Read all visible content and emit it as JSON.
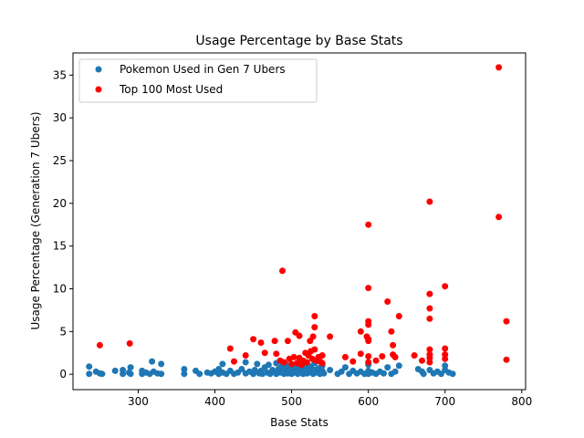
{
  "chart_data": {
    "type": "scatter",
    "title": "Usage Percentage by Base Stats",
    "xlabel": "Base Stats",
    "ylabel": "Usage Percentage (Generation 7 Ubers)",
    "xlim": [
      215,
      805
    ],
    "ylim": [
      -1.8,
      37.6
    ],
    "xticks": [
      300,
      400,
      500,
      600,
      700,
      800
    ],
    "yticks": [
      0,
      5,
      10,
      15,
      20,
      25,
      30,
      35
    ],
    "grid": false,
    "legend_position": "top-left",
    "series": [
      {
        "name": "Pokemon Used in Gen 7 Ubers",
        "color": "#1f77b4",
        "points": [
          [
            236,
            0.9
          ],
          [
            236,
            0.05
          ],
          [
            245,
            0.3
          ],
          [
            250,
            0.1
          ],
          [
            253,
            0.05
          ],
          [
            270,
            0.4
          ],
          [
            280,
            0.05
          ],
          [
            280,
            0.5
          ],
          [
            288,
            0.2
          ],
          [
            290,
            0.8
          ],
          [
            290,
            0.05
          ],
          [
            305,
            0.4
          ],
          [
            305,
            0.05
          ],
          [
            310,
            0.2
          ],
          [
            315,
            0.05
          ],
          [
            318,
            1.5
          ],
          [
            320,
            0.3
          ],
          [
            325,
            0.1
          ],
          [
            330,
            1.2
          ],
          [
            330,
            0.05
          ],
          [
            360,
            0.6
          ],
          [
            360,
            0.05
          ],
          [
            375,
            0.4
          ],
          [
            380,
            0.05
          ],
          [
            390,
            0.2
          ],
          [
            395,
            0.1
          ],
          [
            400,
            0.3
          ],
          [
            405,
            0.6
          ],
          [
            405,
            0.05
          ],
          [
            410,
            1.2
          ],
          [
            410,
            0.2
          ],
          [
            415,
            0.05
          ],
          [
            420,
            0.4
          ],
          [
            425,
            0.05
          ],
          [
            430,
            0.2
          ],
          [
            435,
            0.6
          ],
          [
            440,
            0.1
          ],
          [
            440,
            1.4
          ],
          [
            445,
            0.3
          ],
          [
            450,
            0.05
          ],
          [
            452,
            0.5
          ],
          [
            455,
            1.2
          ],
          [
            458,
            0.1
          ],
          [
            460,
            0.4
          ],
          [
            462,
            0.05
          ],
          [
            465,
            0.8
          ],
          [
            468,
            0.2
          ],
          [
            470,
            1.1
          ],
          [
            472,
            0.05
          ],
          [
            475,
            0.5
          ],
          [
            478,
            0.3
          ],
          [
            480,
            1.3
          ],
          [
            480,
            0.05
          ],
          [
            483,
            0.6
          ],
          [
            485,
            0.2
          ],
          [
            487,
            0.9
          ],
          [
            490,
            0.05
          ],
          [
            490,
            0.4
          ],
          [
            492,
            1.2
          ],
          [
            495,
            0.1
          ],
          [
            495,
            0.7
          ],
          [
            497,
            0.3
          ],
          [
            500,
            0.05
          ],
          [
            500,
            1.1
          ],
          [
            502,
            0.5
          ],
          [
            505,
            0.2
          ],
          [
            505,
            0.9
          ],
          [
            508,
            0.05
          ],
          [
            510,
            0.6
          ],
          [
            510,
            1.3
          ],
          [
            512,
            0.3
          ],
          [
            515,
            0.05
          ],
          [
            515,
            0.8
          ],
          [
            518,
            0.4
          ],
          [
            520,
            0.1
          ],
          [
            520,
            1.2
          ],
          [
            522,
            0.6
          ],
          [
            525,
            0.2
          ],
          [
            525,
            0.9
          ],
          [
            528,
            0.05
          ],
          [
            530,
            0.5
          ],
          [
            530,
            1.3
          ],
          [
            533,
            0.2
          ],
          [
            535,
            0.7
          ],
          [
            537,
            0.05
          ],
          [
            540,
            0.4
          ],
          [
            540,
            1.0
          ],
          [
            542,
            0.1
          ],
          [
            550,
            0.5
          ],
          [
            560,
            0.05
          ],
          [
            565,
            0.3
          ],
          [
            570,
            0.8
          ],
          [
            575,
            0.05
          ],
          [
            580,
            0.4
          ],
          [
            585,
            0.1
          ],
          [
            590,
            0.3
          ],
          [
            595,
            0.05
          ],
          [
            600,
            0.4
          ],
          [
            600,
            1.1
          ],
          [
            600,
            0.05
          ],
          [
            605,
            0.2
          ],
          [
            610,
            0.05
          ],
          [
            615,
            0.3
          ],
          [
            620,
            0.1
          ],
          [
            625,
            0.8
          ],
          [
            630,
            0.05
          ],
          [
            635,
            0.3
          ],
          [
            640,
            1.0
          ],
          [
            665,
            0.6
          ],
          [
            670,
            0.3
          ],
          [
            672,
            0.05
          ],
          [
            680,
            0.5
          ],
          [
            685,
            0.1
          ],
          [
            690,
            0.3
          ],
          [
            695,
            0.05
          ],
          [
            700,
            0.5
          ],
          [
            700,
            1.0
          ],
          [
            705,
            0.2
          ],
          [
            710,
            0.05
          ]
        ]
      },
      {
        "name": "Top 100 Most Used",
        "color": "#ff0000",
        "points": [
          [
            250,
            3.4
          ],
          [
            289,
            3.6
          ],
          [
            420,
            3.0
          ],
          [
            425,
            1.5
          ],
          [
            440,
            2.2
          ],
          [
            450,
            4.1
          ],
          [
            460,
            3.7
          ],
          [
            465,
            2.5
          ],
          [
            478,
            3.9
          ],
          [
            480,
            2.4
          ],
          [
            485,
            1.6
          ],
          [
            488,
            12.1
          ],
          [
            490,
            1.4
          ],
          [
            495,
            3.9
          ],
          [
            497,
            1.8
          ],
          [
            500,
            1.2
          ],
          [
            503,
            2.0
          ],
          [
            505,
            4.9
          ],
          [
            507,
            1.3
          ],
          [
            510,
            4.5
          ],
          [
            510,
            1.9
          ],
          [
            513,
            1.1
          ],
          [
            515,
            1.6
          ],
          [
            518,
            2.5
          ],
          [
            520,
            1.4
          ],
          [
            522,
            2.2
          ],
          [
            524,
            3.9
          ],
          [
            525,
            2.7
          ],
          [
            527,
            1.8
          ],
          [
            528,
            4.4
          ],
          [
            530,
            6.8
          ],
          [
            530,
            5.5
          ],
          [
            530,
            2.9
          ],
          [
            532,
            1.6
          ],
          [
            535,
            2.0
          ],
          [
            537,
            1.5
          ],
          [
            540,
            2.2
          ],
          [
            540,
            1.3
          ],
          [
            550,
            4.4
          ],
          [
            570,
            2.0
          ],
          [
            580,
            1.5
          ],
          [
            590,
            5.0
          ],
          [
            590,
            2.4
          ],
          [
            598,
            4.4
          ],
          [
            600,
            17.5
          ],
          [
            600,
            10.1
          ],
          [
            600,
            6.2
          ],
          [
            600,
            5.8
          ],
          [
            600,
            4.1
          ],
          [
            600,
            3.9
          ],
          [
            600,
            2.1
          ],
          [
            600,
            1.4
          ],
          [
            610,
            1.6
          ],
          [
            618,
            2.1
          ],
          [
            625,
            8.5
          ],
          [
            630,
            5.0
          ],
          [
            632,
            3.4
          ],
          [
            632,
            2.3
          ],
          [
            635,
            2.0
          ],
          [
            640,
            6.8
          ],
          [
            660,
            2.2
          ],
          [
            670,
            1.6
          ],
          [
            680,
            20.2
          ],
          [
            680,
            9.4
          ],
          [
            680,
            7.7
          ],
          [
            680,
            6.5
          ],
          [
            680,
            2.9
          ],
          [
            680,
            2.3
          ],
          [
            680,
            1.9
          ],
          [
            680,
            1.4
          ],
          [
            700,
            10.3
          ],
          [
            700,
            3.0
          ],
          [
            700,
            2.3
          ],
          [
            700,
            1.8
          ],
          [
            770,
            35.9
          ],
          [
            770,
            18.4
          ],
          [
            780,
            6.2
          ],
          [
            780,
            1.7
          ]
        ]
      }
    ]
  }
}
